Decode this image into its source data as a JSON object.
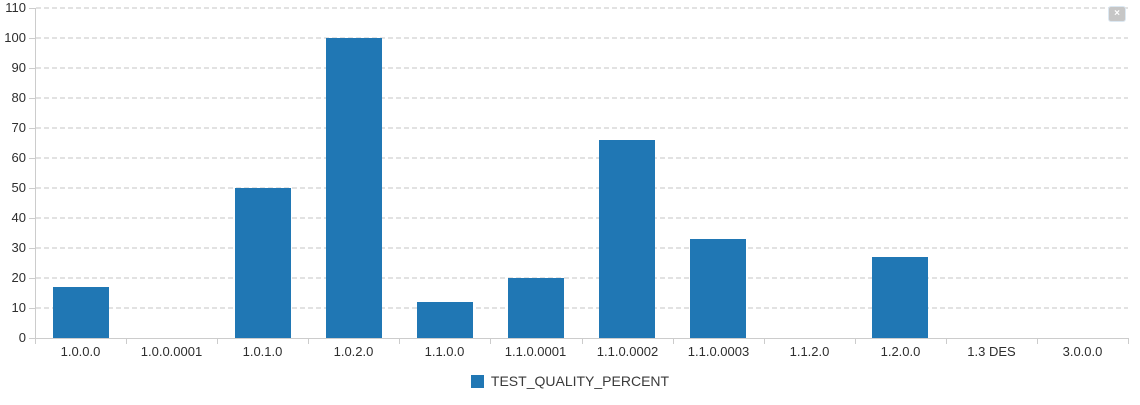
{
  "panel": {
    "close_label": "×"
  },
  "chart_data": {
    "type": "bar",
    "title": "",
    "xlabel": "",
    "ylabel": "",
    "categories": [
      "1.0.0.0",
      "1.0.0.0001",
      "1.0.1.0",
      "1.0.2.0",
      "1.1.0.0",
      "1.1.0.0001",
      "1.1.0.0002",
      "1.1.0.0003",
      "1.1.2.0",
      "1.2.0.0",
      "1.3 DES",
      "3.0.0.0"
    ],
    "values": [
      17,
      0,
      50,
      100,
      12,
      20,
      66,
      33,
      0,
      27,
      0,
      0
    ],
    "ylim": [
      0,
      110
    ],
    "ytick_step": 10,
    "grid": "horizontal-dashed",
    "legend": "TEST_QUALITY_PERCENT",
    "legend_position": "bottom-center",
    "bar_color": "#2077b4",
    "colors": {
      "bar": "#2077b4",
      "grid": "#e2e2e2",
      "axis": "#cccccc",
      "text": "#2e2e2e",
      "background": "#ffffff"
    }
  }
}
